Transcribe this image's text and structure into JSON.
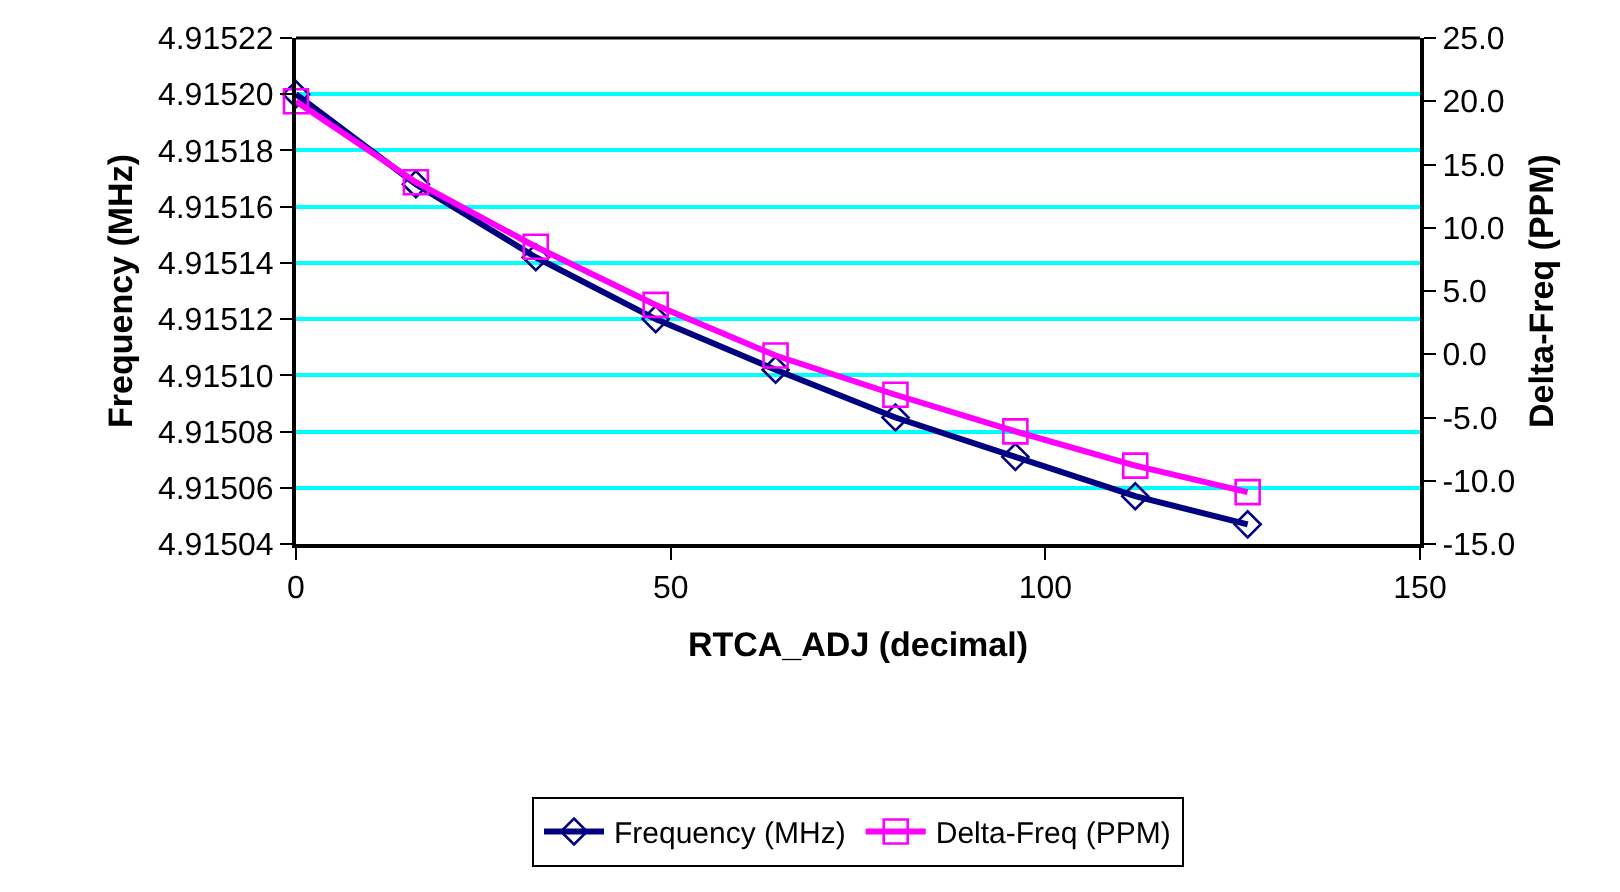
{
  "chart_data": {
    "type": "line",
    "xlabel": "RTCA_ADJ (decimal)",
    "ylabel": "Frequency (MHz)",
    "y2label": "Delta-Freq (PPM)",
    "x": [
      0,
      16,
      32,
      48,
      64,
      80,
      96,
      112,
      127
    ],
    "series": [
      {
        "name": "Frequency (MHz)",
        "color": "#000080",
        "marker": "diamond",
        "values": [
          4.9152,
          4.915168,
          4.915142,
          4.91512,
          4.915102,
          4.915085,
          4.915071,
          4.915057,
          4.915047
        ]
      },
      {
        "name": "Delta-Freq (PPM)",
        "color": "#ff00ff",
        "marker": "square",
        "axis": "y2",
        "values": [
          20.0,
          13.6,
          8.5,
          3.9,
          -0.1,
          -3.2,
          -6.1,
          -8.8,
          -10.9
        ]
      }
    ],
    "xlim": [
      0,
      150
    ],
    "xticks": [
      0,
      50,
      100,
      150
    ],
    "ylim": [
      4.91504,
      4.91522
    ],
    "yticks": [
      4.91504,
      4.91506,
      4.91508,
      {
        "value": 4.9151,
        "label": "4.91510"
      },
      4.91512,
      4.91514,
      4.91516,
      4.91518,
      {
        "value": 4.9152,
        "label": "4.91520"
      },
      4.91522
    ],
    "y2lim": [
      -15,
      25
    ],
    "y2ticks": [
      {
        "value": -15,
        "label": "-15.0"
      },
      {
        "value": -10,
        "label": "-10.0"
      },
      {
        "value": -5,
        "label": "-5.0"
      },
      {
        "value": 0,
        "label": "0.0"
      },
      {
        "value": 5,
        "label": "5.0"
      },
      {
        "value": 10,
        "label": "10.0"
      },
      {
        "value": 15,
        "label": "15.0"
      },
      {
        "value": 20,
        "label": "20.0"
      },
      {
        "value": 25,
        "label": "25.0"
      }
    ],
    "grid": "y",
    "legend": "bottom",
    "line_style": "solid"
  }
}
